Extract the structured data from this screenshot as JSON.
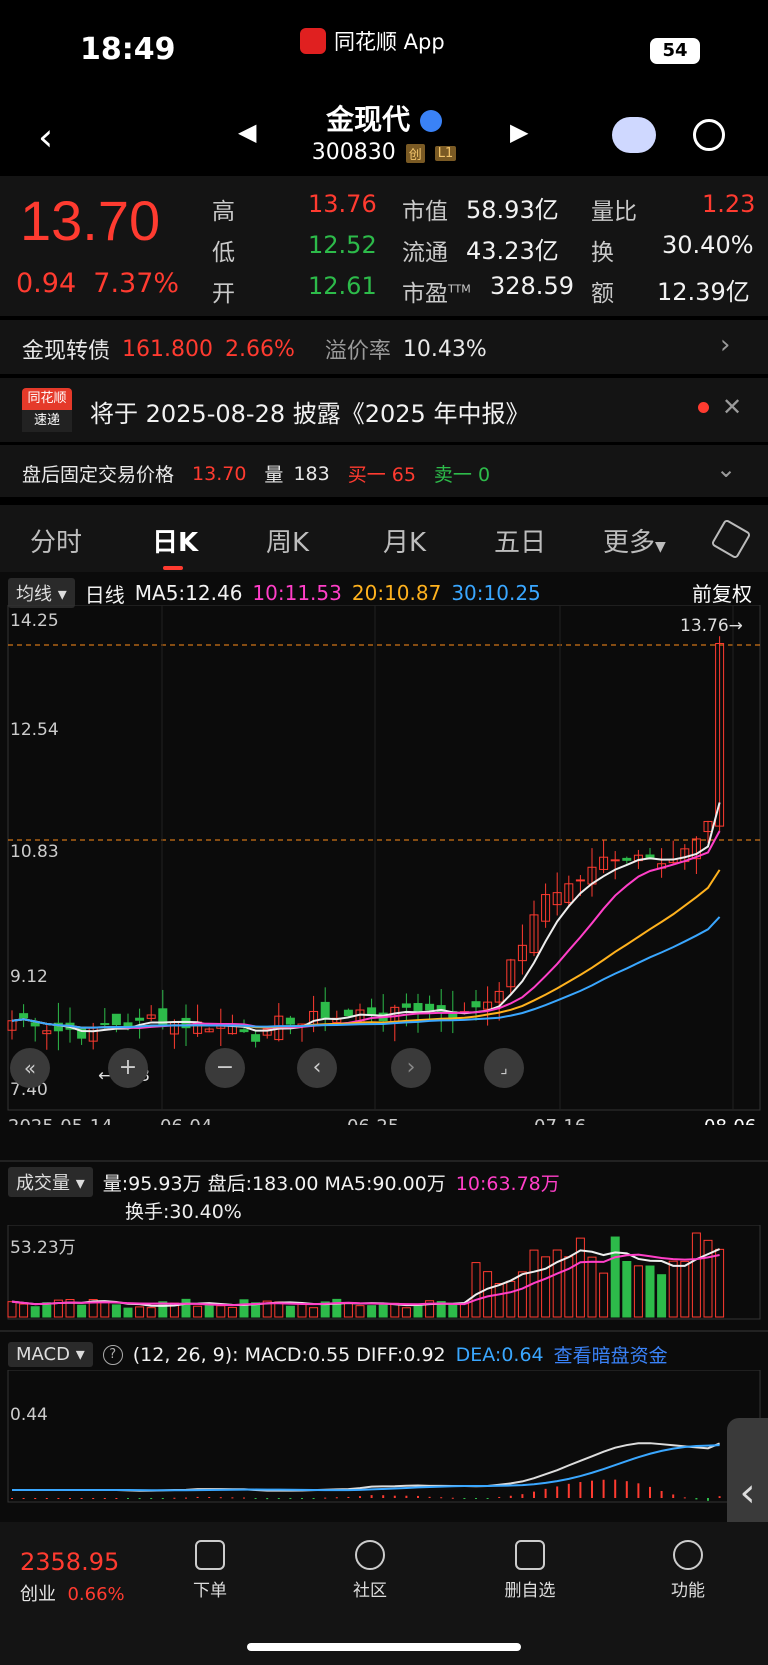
{
  "status_bar": {
    "time": "18:49",
    "app": "同花顺 App",
    "battery": "54"
  },
  "header": {
    "name": "金现代",
    "code": "300830",
    "badges": [
      "创",
      "L1"
    ]
  },
  "quote": {
    "price": "13.70",
    "change": "0.94",
    "change_pct": "7.37%",
    "fields": [
      {
        "label": "高",
        "value": "13.76",
        "color": "#ff3b30"
      },
      {
        "label": "低",
        "value": "12.52",
        "color": "#2dbb4a"
      },
      {
        "label": "开",
        "value": "12.61",
        "color": "#2dbb4a"
      },
      {
        "label": "市值",
        "value": "58.93亿",
        "color": "#f2f2f2"
      },
      {
        "label": "流通",
        "value": "43.23亿",
        "color": "#f2f2f2"
      },
      {
        "label": "市盈",
        "sup": "TTM",
        "value": "328.59",
        "color": "#f2f2f2"
      },
      {
        "label": "量比",
        "value": "1.23",
        "color": "#ff3b30"
      },
      {
        "label": "换",
        "value": "30.40%",
        "color": "#f2f2f2"
      },
      {
        "label": "额",
        "value": "12.39亿",
        "color": "#f2f2f2"
      }
    ]
  },
  "bond": {
    "label": "金现转债",
    "price": "161.800",
    "pct": "2.66%",
    "premium_label": "溢价率",
    "premium": "10.43%"
  },
  "notice": {
    "logo_top": "同花顺",
    "logo_bottom": "速递",
    "text": "将于 2025-08-28 披露《2025 年中报》"
  },
  "after_hours": {
    "label": "盘后固定交易价格",
    "price": "13.70",
    "vol_label": "量",
    "vol": "183",
    "buy": "买一 65",
    "sell": "卖一 0"
  },
  "tabs": [
    "分时",
    "日K",
    "周K",
    "月K",
    "五日",
    "更多"
  ],
  "ma_bar": {
    "chip": "均线",
    "period": "日线",
    "ma5": "MA5:12.46",
    "ma10": "10:11.53",
    "ma20": "20:10.87",
    "ma30": "30:10.25",
    "adjust": "前复权"
  },
  "kline": {
    "y_ticks": [
      "14.25",
      "12.54",
      "10.83",
      "9.12",
      "7.40"
    ],
    "x_ticks": [
      "2025-05-14",
      "06-04",
      "06-25",
      "07-16",
      "08-06"
    ],
    "max_label": "13.76→",
    "min_label": "←8.13"
  },
  "volume": {
    "chip": "成交量",
    "text": "量:95.93万  盘后:183.00  MA5:90.00万",
    "ma10": "10:63.78万",
    "turnover": "换手:30.40%",
    "y_tick": "53.23万"
  },
  "macd": {
    "chip": "MACD",
    "params": "(12, 26, 9): MACD:0.55  DIFF:0.92",
    "dea": "DEA:0.64",
    "link": "查看暗盘资金",
    "y_tick": "0.44"
  },
  "bottom_nav": {
    "index_value": "2358.95",
    "index_name": "创业",
    "index_pct": "0.66%",
    "items": [
      "下单",
      "社区",
      "删自选",
      "功能"
    ]
  }
}
